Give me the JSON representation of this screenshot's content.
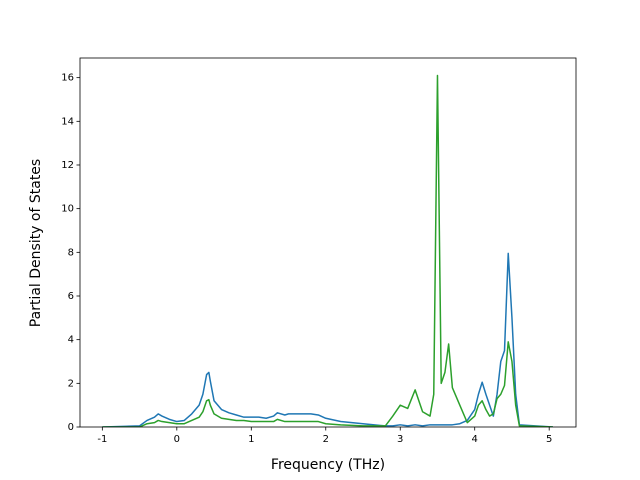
{
  "chart_data": {
    "type": "line",
    "x_label": "Frequency (THz)",
    "y_label": "Partial Density of States",
    "x": [
      -1,
      -0.5,
      -0.4,
      -0.3,
      -0.25,
      -0.2,
      -0.1,
      0,
      0.1,
      0.2,
      0.3,
      0.35,
      0.4,
      0.43,
      0.45,
      0.5,
      0.6,
      0.7,
      0.8,
      0.9,
      1.0,
      1.1,
      1.2,
      1.3,
      1.35,
      1.45,
      1.5,
      1.6,
      1.8,
      1.9,
      2.0,
      2.2,
      2.5,
      2.8,
      2.9,
      3.0,
      3.1,
      3.2,
      3.3,
      3.4,
      3.45,
      3.5,
      3.55,
      3.6,
      3.65,
      3.7,
      3.8,
      3.9,
      4.0,
      4.05,
      4.1,
      4.15,
      4.2,
      4.25,
      4.3,
      4.35,
      4.4,
      4.45,
      4.5,
      4.55,
      4.6,
      5.05
    ],
    "series": [
      {
        "color": "#1f77b4",
        "values": [
          0,
          0.05,
          0.3,
          0.45,
          0.6,
          0.5,
          0.35,
          0.25,
          0.3,
          0.6,
          1.0,
          1.5,
          2.4,
          2.5,
          2.1,
          1.2,
          0.8,
          0.65,
          0.55,
          0.45,
          0.45,
          0.45,
          0.4,
          0.5,
          0.65,
          0.55,
          0.6,
          0.6,
          0.6,
          0.55,
          0.4,
          0.25,
          0.15,
          0.05,
          0.05,
          0.1,
          0.05,
          0.1,
          0.05,
          0.1,
          0.1,
          0.1,
          0.1,
          0.1,
          0.1,
          0.1,
          0.15,
          0.3,
          0.8,
          1.5,
          2.05,
          1.5,
          1.0,
          0.5,
          1.5,
          3.0,
          3.5,
          7.95,
          5.0,
          1.5,
          0.1,
          0
        ]
      },
      {
        "color": "#2ca02c",
        "values": [
          0,
          0,
          0.15,
          0.2,
          0.3,
          0.25,
          0.2,
          0.15,
          0.15,
          0.3,
          0.45,
          0.7,
          1.2,
          1.25,
          1.0,
          0.6,
          0.4,
          0.35,
          0.3,
          0.3,
          0.25,
          0.25,
          0.25,
          0.25,
          0.35,
          0.25,
          0.25,
          0.25,
          0.25,
          0.25,
          0.15,
          0.1,
          0.05,
          0.05,
          0.5,
          1.0,
          0.85,
          1.7,
          0.7,
          0.5,
          1.5,
          16.1,
          2.0,
          2.5,
          3.8,
          1.8,
          1.0,
          0.2,
          0.5,
          1.0,
          1.2,
          0.8,
          0.5,
          0.6,
          1.3,
          1.5,
          1.9,
          3.9,
          3.0,
          1.0,
          0.05,
          0
        ]
      }
    ],
    "xlim": [
      -1.3,
      5.36
    ],
    "ylim": [
      0,
      16.9
    ],
    "xticks": [
      -1,
      0,
      1,
      2,
      3,
      4,
      5
    ],
    "yticks": [
      0,
      2,
      4,
      6,
      8,
      10,
      12,
      14,
      16
    ]
  }
}
